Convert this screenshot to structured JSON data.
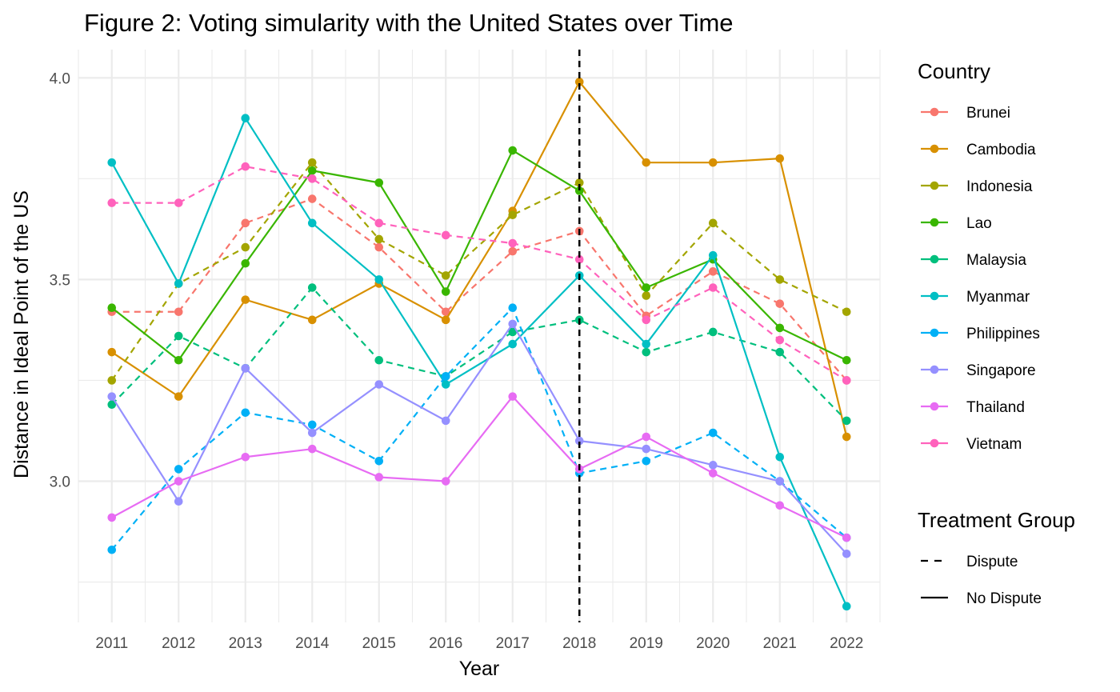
{
  "chart_data": {
    "type": "line",
    "title": "Figure 2: Voting simularity with the United States over Time",
    "xlabel": "Year",
    "ylabel": "Distance in Ideal Point of the US",
    "x": [
      2011,
      2012,
      2013,
      2014,
      2015,
      2016,
      2017,
      2018,
      2019,
      2020,
      2021,
      2022
    ],
    "x_tick_labels": [
      "2011",
      "2012",
      "2013",
      "2014",
      "2015",
      "2016",
      "2017",
      "2018",
      "2019",
      "2020",
      "2021",
      "2022"
    ],
    "xlim": [
      2010.5,
      2022.5
    ],
    "ylim": [
      2.65,
      4.07
    ],
    "y_ticks": [
      3.0,
      3.5,
      4.0
    ],
    "y_tick_labels": [
      "3.0",
      "3.5",
      "4.0"
    ],
    "y_minor_ticks": [
      2.75,
      3.25,
      3.75
    ],
    "grid": true,
    "vline": {
      "x": 2018,
      "style": "dashed",
      "color": "#000000"
    },
    "legend": {
      "placement": "right",
      "color_title": "Country",
      "linetype_title": "Treatment Group",
      "linetype_entries": [
        {
          "label": "Dispute",
          "style": "dashed"
        },
        {
          "label": "No Dispute",
          "style": "solid"
        }
      ]
    },
    "series": [
      {
        "name": "Brunei",
        "color": "#F8766D",
        "group": "Dispute",
        "values": [
          3.42,
          3.42,
          3.64,
          3.7,
          3.58,
          3.42,
          3.57,
          3.62,
          3.41,
          3.52,
          3.44,
          3.25
        ]
      },
      {
        "name": "Cambodia",
        "color": "#D89000",
        "group": "No Dispute",
        "values": [
          3.32,
          3.21,
          3.45,
          3.4,
          3.49,
          3.4,
          3.67,
          3.99,
          3.79,
          3.79,
          3.8,
          3.11
        ]
      },
      {
        "name": "Indonesia",
        "color": "#A3A500",
        "group": "Dispute",
        "values": [
          3.25,
          3.49,
          3.58,
          3.79,
          3.6,
          3.51,
          3.66,
          3.74,
          3.46,
          3.64,
          3.5,
          3.42
        ]
      },
      {
        "name": "Lao",
        "color": "#39B600",
        "group": "No Dispute",
        "values": [
          3.43,
          3.3,
          3.54,
          3.77,
          3.74,
          3.47,
          3.82,
          3.72,
          3.48,
          3.55,
          3.38,
          3.3
        ]
      },
      {
        "name": "Malaysia",
        "color": "#00BF7D",
        "group": "Dispute",
        "values": [
          3.19,
          3.36,
          3.28,
          3.48,
          3.3,
          3.26,
          3.37,
          3.4,
          3.32,
          3.37,
          3.32,
          3.15
        ]
      },
      {
        "name": "Myanmar",
        "color": "#00BFC4",
        "group": "No Dispute",
        "values": [
          3.79,
          3.49,
          3.9,
          3.64,
          3.5,
          3.24,
          3.34,
          3.51,
          3.34,
          3.56,
          3.06,
          2.69
        ]
      },
      {
        "name": "Philippines",
        "color": "#00B0F6",
        "group": "Dispute",
        "values": [
          2.83,
          3.03,
          3.17,
          3.14,
          3.05,
          3.26,
          3.43,
          3.02,
          3.05,
          3.12,
          3.0,
          2.86
        ]
      },
      {
        "name": "Singapore",
        "color": "#9590FF",
        "group": "No Dispute",
        "values": [
          3.21,
          2.95,
          3.28,
          3.12,
          3.24,
          3.15,
          3.39,
          3.1,
          3.08,
          3.04,
          3.0,
          2.82
        ]
      },
      {
        "name": "Thailand",
        "color": "#E76BF3",
        "group": "No Dispute",
        "values": [
          2.91,
          3.0,
          3.06,
          3.08,
          3.01,
          3.0,
          3.21,
          3.03,
          3.11,
          3.02,
          2.94,
          2.86
        ]
      },
      {
        "name": "Vietnam",
        "color": "#FF62BC",
        "group": "Dispute",
        "values": [
          3.69,
          3.69,
          3.78,
          3.75,
          3.64,
          3.61,
          3.59,
          3.55,
          3.4,
          3.48,
          3.35,
          3.25
        ]
      }
    ]
  }
}
